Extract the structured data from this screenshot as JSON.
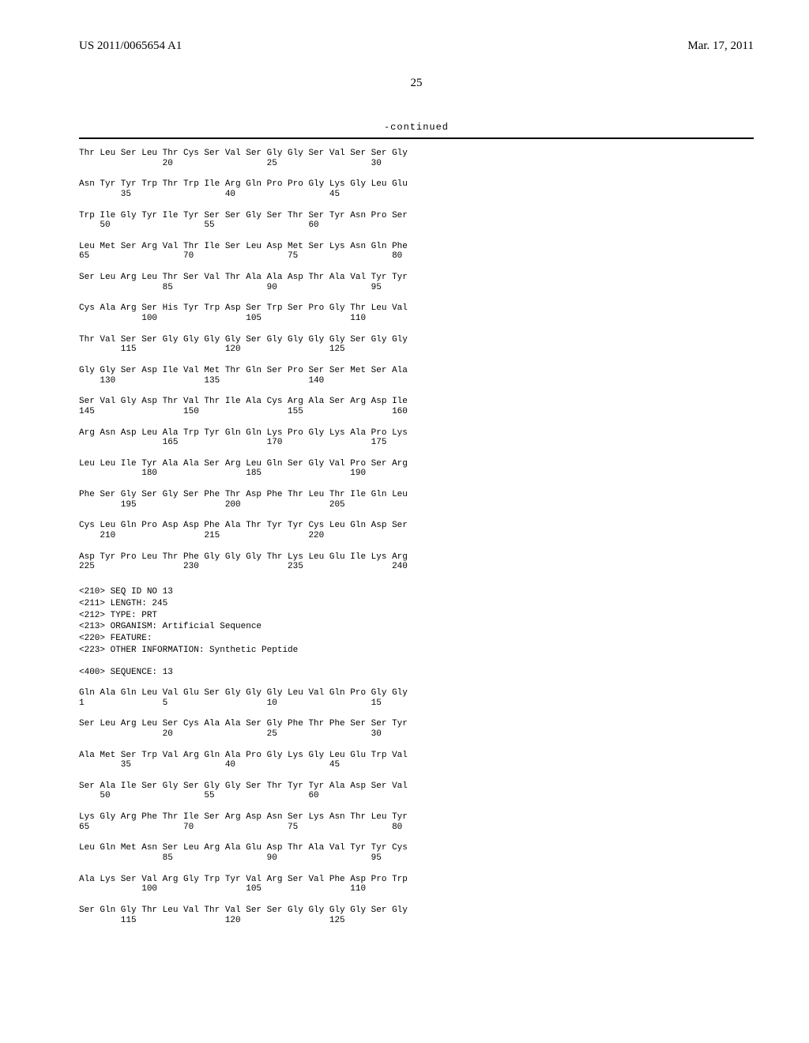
{
  "header": {
    "pub_number": "US 2011/0065654 A1",
    "pub_date": "Mar. 17, 2011"
  },
  "page_number": "25",
  "continued_label": "-continued",
  "sequence_rows_1": [
    {
      "aa": "Thr Leu Ser Leu Thr Cys Ser Val Ser Gly Gly Ser Val Ser Ser Gly",
      "nums": "                20                  25                  30"
    },
    {
      "aa": "Asn Tyr Tyr Trp Thr Trp Ile Arg Gln Pro Pro Gly Lys Gly Leu Glu",
      "nums": "        35                  40                  45"
    },
    {
      "aa": "Trp Ile Gly Tyr Ile Tyr Ser Ser Gly Ser Thr Ser Tyr Asn Pro Ser",
      "nums": "    50                  55                  60"
    },
    {
      "aa": "Leu Met Ser Arg Val Thr Ile Ser Leu Asp Met Ser Lys Asn Gln Phe",
      "nums": "65                  70                  75                  80"
    },
    {
      "aa": "Ser Leu Arg Leu Thr Ser Val Thr Ala Ala Asp Thr Ala Val Tyr Tyr",
      "nums": "                85                  90                  95"
    },
    {
      "aa": "Cys Ala Arg Ser His Tyr Trp Asp Ser Trp Ser Pro Gly Thr Leu Val",
      "nums": "            100                 105                 110"
    },
    {
      "aa": "Thr Val Ser Ser Gly Gly Gly Gly Ser Gly Gly Gly Gly Ser Gly Gly",
      "nums": "        115                 120                 125"
    },
    {
      "aa": "Gly Gly Ser Asp Ile Val Met Thr Gln Ser Pro Ser Ser Met Ser Ala",
      "nums": "    130                 135                 140"
    },
    {
      "aa": "Ser Val Gly Asp Thr Val Thr Ile Ala Cys Arg Ala Ser Arg Asp Ile",
      "nums": "145                 150                 155                 160"
    },
    {
      "aa": "Arg Asn Asp Leu Ala Trp Tyr Gln Gln Lys Pro Gly Lys Ala Pro Lys",
      "nums": "                165                 170                 175"
    },
    {
      "aa": "Leu Leu Ile Tyr Ala Ala Ser Arg Leu Gln Ser Gly Val Pro Ser Arg",
      "nums": "            180                 185                 190"
    },
    {
      "aa": "Phe Ser Gly Ser Gly Ser Phe Thr Asp Phe Thr Leu Thr Ile Gln Leu",
      "nums": "        195                 200                 205"
    },
    {
      "aa": "Cys Leu Gln Pro Asp Asp Phe Ala Thr Tyr Tyr Cys Leu Gln Asp Ser",
      "nums": "    210                 215                 220"
    },
    {
      "aa": "Asp Tyr Pro Leu Thr Phe Gly Gly Gly Thr Lys Leu Glu Ile Lys Arg",
      "nums": "225                 230                 235                 240"
    }
  ],
  "meta": [
    "<210> SEQ ID NO 13",
    "<211> LENGTH: 245",
    "<212> TYPE: PRT",
    "<213> ORGANISM: Artificial Sequence",
    "<220> FEATURE:",
    "<223> OTHER INFORMATION: Synthetic Peptide"
  ],
  "sequence_label": "<400> SEQUENCE: 13",
  "sequence_rows_2": [
    {
      "aa": "Gln Ala Gln Leu Val Glu Ser Gly Gly Gly Leu Val Gln Pro Gly Gly",
      "nums": "1               5                   10                  15"
    },
    {
      "aa": "Ser Leu Arg Leu Ser Cys Ala Ala Ser Gly Phe Thr Phe Ser Ser Tyr",
      "nums": "                20                  25                  30"
    },
    {
      "aa": "Ala Met Ser Trp Val Arg Gln Ala Pro Gly Lys Gly Leu Glu Trp Val",
      "nums": "        35                  40                  45"
    },
    {
      "aa": "Ser Ala Ile Ser Gly Ser Gly Gly Ser Thr Tyr Tyr Ala Asp Ser Val",
      "nums": "    50                  55                  60"
    },
    {
      "aa": "Lys Gly Arg Phe Thr Ile Ser Arg Asp Asn Ser Lys Asn Thr Leu Tyr",
      "nums": "65                  70                  75                  80"
    },
    {
      "aa": "Leu Gln Met Asn Ser Leu Arg Ala Glu Asp Thr Ala Val Tyr Tyr Cys",
      "nums": "                85                  90                  95"
    },
    {
      "aa": "Ala Lys Ser Val Arg Gly Trp Tyr Val Arg Ser Val Phe Asp Pro Trp",
      "nums": "            100                 105                 110"
    },
    {
      "aa": "Ser Gln Gly Thr Leu Val Thr Val Ser Ser Gly Gly Gly Gly Ser Gly",
      "nums": "        115                 120                 125"
    }
  ]
}
